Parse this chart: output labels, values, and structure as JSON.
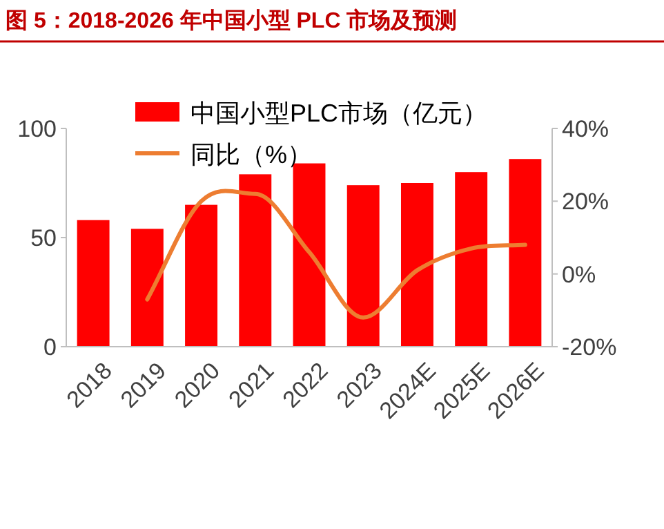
{
  "chart_data": {
    "type": "bar",
    "title": "图 5：2018-2026 年中国小型 PLC 市场及预测",
    "categories": [
      "2018",
      "2019",
      "2020",
      "2021",
      "2022",
      "2023",
      "2024E",
      "2025E",
      "2026E"
    ],
    "series": [
      {
        "name": "中国小型PLC市场（亿元）",
        "color": "#ff0000",
        "values": [
          58,
          54,
          65,
          79,
          84,
          74,
          75,
          80,
          86
        ]
      },
      {
        "name": "同比（%）",
        "type": "line",
        "axis": "y2",
        "color": "#ed7d31",
        "values": [
          null,
          -7,
          20,
          22,
          6,
          -12,
          1,
          7,
          8
        ]
      }
    ],
    "ylim": [
      0,
      100
    ],
    "yticks": [
      0,
      50,
      100
    ],
    "y2lim": [
      -20,
      40
    ],
    "y2ticks": [
      {
        "value": -20,
        "label": "-20%"
      },
      {
        "value": 0,
        "label": "0%"
      },
      {
        "value": 20,
        "label": "20%"
      },
      {
        "value": 40,
        "label": "40%"
      }
    ],
    "grid": false,
    "legend": "top left",
    "marker": "none",
    "line_style": "solid"
  }
}
